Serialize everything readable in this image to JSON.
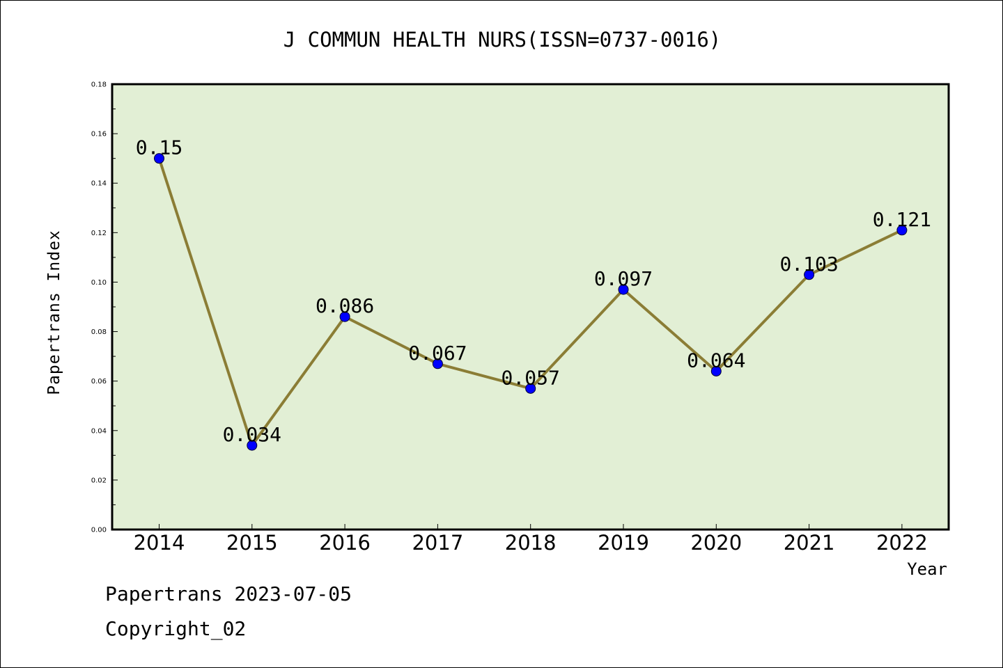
{
  "chart_data": {
    "type": "line",
    "title": "J COMMUN HEALTH NURS(ISSN=0737-0016)",
    "xlabel": "Year",
    "ylabel": "Papertrans Index",
    "categories": [
      "2014",
      "2015",
      "2016",
      "2017",
      "2018",
      "2019",
      "2020",
      "2021",
      "2022"
    ],
    "values": [
      0.15,
      0.034,
      0.086,
      0.067,
      0.057,
      0.097,
      0.064,
      0.103,
      0.121
    ],
    "data_labels": [
      "0.15",
      "0.034",
      "0.086",
      "0.067",
      "0.057",
      "0.097",
      "0.064",
      "0.103",
      "0.121"
    ],
    "ylim": [
      0,
      0.18
    ],
    "yticks": [
      "0.00",
      "0.02",
      "0.04",
      "0.06",
      "0.08",
      "0.10",
      "0.12",
      "0.14",
      "0.16",
      "0.18"
    ],
    "grid": false,
    "colors": {
      "plot_background": "#e2efd5",
      "line": "#8b7d35",
      "marker": "#0000ff"
    }
  },
  "footer": {
    "line1": "Papertrans 2023-07-05",
    "line2": "Copyright_02"
  }
}
